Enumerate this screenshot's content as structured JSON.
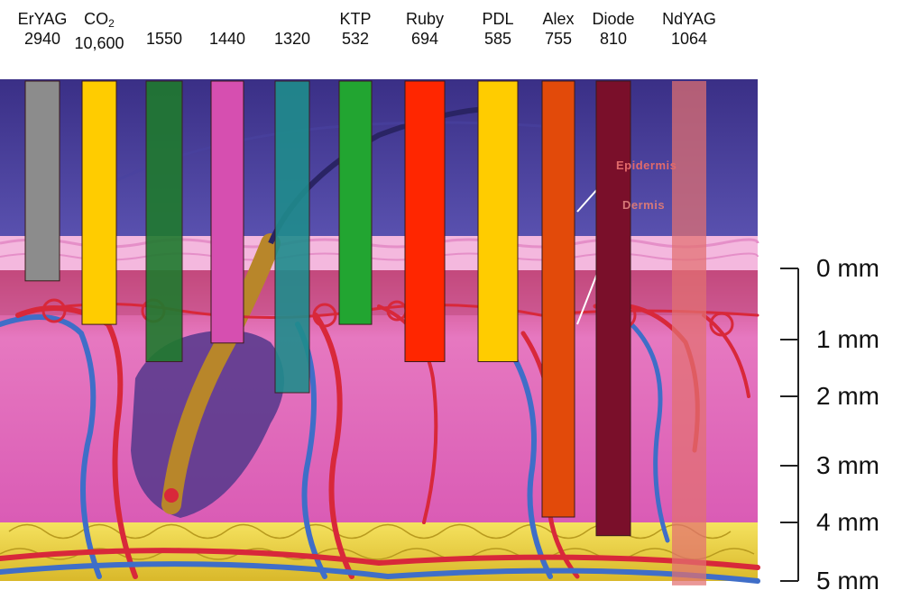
{
  "lasers": [
    {
      "name": "ErYAG",
      "wavelength": "2940",
      "color": "#8c8c8c",
      "depth_mm": 0.2
    },
    {
      "name": "CO",
      "name_sub": "2",
      "wavelength": "10,600",
      "color": "#ffcc00",
      "depth_mm": 0.9
    },
    {
      "name": "",
      "wavelength": "1550",
      "color": "#1f7a2e",
      "depth_mm": 1.5
    },
    {
      "name": "",
      "wavelength": "1440",
      "color": "#d64fb0",
      "depth_mm": 1.2
    },
    {
      "name": "",
      "wavelength": "1320",
      "color": "#1f8c8c",
      "depth_mm": 2.0
    },
    {
      "name": "KTP",
      "wavelength": "532",
      "color": "#22a531",
      "depth_mm": 0.9
    },
    {
      "name": "Ruby",
      "wavelength": "694",
      "color": "#ff2600",
      "depth_mm": 1.5
    },
    {
      "name": "PDL",
      "wavelength": "585",
      "color": "#ffcc00",
      "depth_mm": 1.5
    },
    {
      "name": "Alex",
      "wavelength": "755",
      "color": "#e24a0a",
      "depth_mm": 4.0
    },
    {
      "name": "Diode",
      "wavelength": "810",
      "color": "#7a0f2a",
      "depth_mm": 4.3
    },
    {
      "name": "NdYAG",
      "wavelength": "1064",
      "color": "#e27070",
      "depth_mm": 5.1
    }
  ],
  "depth_scale": {
    "ticks": [
      "0 mm",
      "1 mm",
      "2 mm",
      "3 mm",
      "4 mm",
      "5 mm"
    ]
  },
  "tissue_labels": {
    "epidermis": "Epidermis",
    "dermis": "Dermis"
  },
  "colors": {
    "sky": "#3b2f8c",
    "epidermis": "#f2a9d8",
    "dermis": "#e86ab8",
    "fat": "#f2dd55",
    "artery": "#d8283a",
    "vein": "#3f6ec8",
    "hair": "#5a3a8c"
  }
}
